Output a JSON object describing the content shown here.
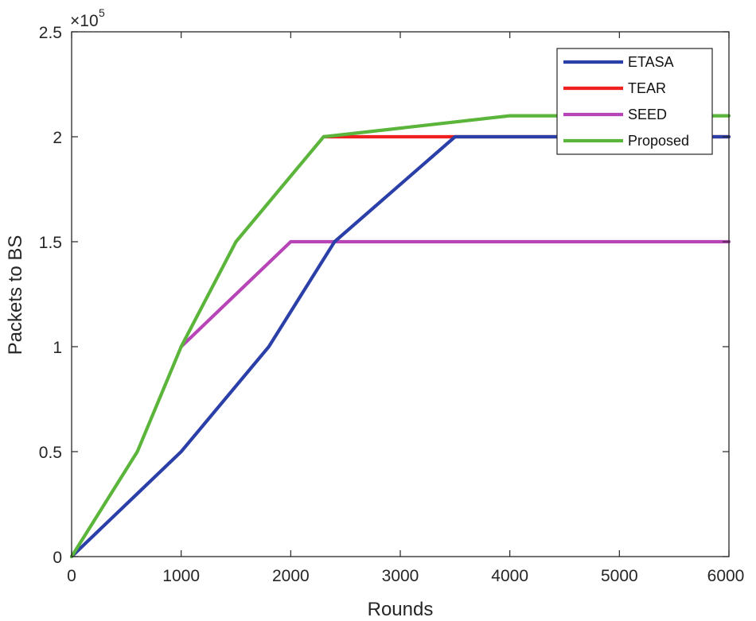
{
  "chart_data": {
    "type": "line",
    "title": "",
    "xlabel": "Rounds",
    "ylabel": "Packets to BS",
    "xlim": [
      0,
      6000
    ],
    "ylim": [
      0,
      2.5
    ],
    "y_multiplier_base": "×10",
    "y_multiplier_exp": "5",
    "xticks": [
      "0",
      "1000",
      "2000",
      "3000",
      "4000",
      "5000",
      "6000"
    ],
    "yticks": [
      "0",
      "0.5",
      "1",
      "1.5",
      "2",
      "2.5"
    ],
    "grid": false,
    "legend_location": "top-right",
    "series": [
      {
        "name": "ETASA",
        "color": "#2b3fa8",
        "points": [
          [
            0,
            0
          ],
          [
            600,
            0.3
          ],
          [
            1000,
            0.5
          ],
          [
            1800,
            1.0
          ],
          [
            2400,
            1.5
          ],
          [
            3500,
            2.0
          ],
          [
            6000,
            2.0
          ]
        ]
      },
      {
        "name": "TEAR",
        "color": "#ee2020",
        "points": [
          [
            2300,
            2.0
          ],
          [
            6000,
            2.0
          ]
        ]
      },
      {
        "name": "SEED",
        "color": "#b845b8",
        "points": [
          [
            1000,
            1.0
          ],
          [
            2000,
            1.5
          ],
          [
            6000,
            1.5
          ]
        ]
      },
      {
        "name": "Proposed",
        "color": "#5ab53a",
        "points": [
          [
            0,
            0
          ],
          [
            600,
            0.5
          ],
          [
            1000,
            1.0
          ],
          [
            1500,
            1.5
          ],
          [
            2300,
            2.0
          ],
          [
            4000,
            2.1
          ],
          [
            6000,
            2.1
          ]
        ]
      }
    ]
  }
}
